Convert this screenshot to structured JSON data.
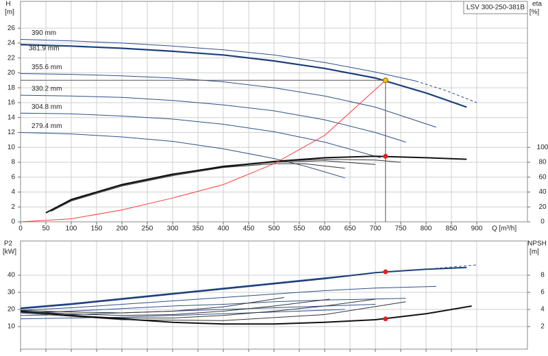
{
  "chart_data": [
    {
      "type": "line",
      "title": "LSV 300-250-381B",
      "y_label": "H",
      "y_unit": "[m]",
      "y2_label": "eta",
      "y2_unit": "[%]",
      "x_label": "Q [m³/h]",
      "xlim": [
        0,
        1000
      ],
      "xticks": [
        0,
        50,
        100,
        150,
        200,
        250,
        300,
        350,
        400,
        450,
        500,
        550,
        600,
        650,
        700,
        750,
        800,
        850,
        900
      ],
      "ylim": [
        0,
        29.6
      ],
      "yticks": [
        0,
        2,
        4,
        6,
        8,
        10,
        12,
        14,
        16,
        18,
        20,
        22,
        24,
        26
      ],
      "y2lim": [
        0,
        296
      ],
      "y2ticks": [
        0,
        20,
        40,
        60,
        80,
        100
      ],
      "grid": true,
      "xtick_labels": true,
      "series": [
        {
          "name": "390 mm",
          "color": "#2b4f8a",
          "width": 1,
          "x": [
            0,
            100,
            200,
            300,
            400,
            500,
            600,
            700,
            780
          ],
          "values": [
            24.5,
            24.3,
            24.0,
            23.6,
            23.1,
            22.4,
            21.4,
            20.1,
            18.9
          ]
        },
        {
          "color": "#2b4f8a",
          "width": 1,
          "dash": true,
          "x": [
            780,
            840,
            900
          ],
          "values": [
            18.9,
            17.6,
            16.0
          ]
        },
        {
          "name": "381.9 mm",
          "color": "#1c3f7a",
          "width": 2.2,
          "x": [
            0,
            100,
            200,
            300,
            400,
            500,
            600,
            700,
            800,
            880
          ],
          "values": [
            23.8,
            23.6,
            23.3,
            22.9,
            22.4,
            21.6,
            20.6,
            19.3,
            17.3,
            15.4
          ]
        },
        {
          "name": "355.6 mm",
          "color": "#2b4f8a",
          "width": 1,
          "x": [
            0,
            100,
            200,
            300,
            400,
            500,
            600,
            700,
            820
          ],
          "values": [
            19.9,
            19.8,
            19.6,
            19.3,
            18.8,
            18.0,
            16.9,
            15.4,
            12.7
          ]
        },
        {
          "name": "330.2 mm",
          "color": "#2b4f8a",
          "width": 1,
          "x": [
            0,
            100,
            200,
            300,
            400,
            500,
            600,
            700,
            760
          ],
          "values": [
            17.0,
            16.9,
            16.7,
            16.3,
            15.7,
            14.9,
            13.7,
            12.0,
            10.7
          ]
        },
        {
          "name": "304.8 mm",
          "color": "#2b4f8a",
          "width": 1,
          "x": [
            0,
            100,
            200,
            300,
            400,
            500,
            600,
            710
          ],
          "values": [
            14.6,
            14.5,
            14.2,
            13.8,
            13.1,
            12.1,
            10.7,
            8.6
          ]
        },
        {
          "name": "279.4 mm",
          "color": "#2b4f8a",
          "width": 1,
          "x": [
            0,
            100,
            200,
            300,
            400,
            500,
            560,
            640
          ],
          "values": [
            12.0,
            11.8,
            11.4,
            10.8,
            9.8,
            8.5,
            7.5,
            5.9
          ]
        },
        {
          "color": "#333333",
          "width": 1,
          "axis": "y2",
          "x": [
            60,
            100,
            200,
            300,
            400,
            500,
            560,
            640
          ],
          "values": [
            14,
            28,
            48,
            62,
            73,
            78,
            78,
            72
          ]
        },
        {
          "color": "#333333",
          "width": 1,
          "axis": "y2",
          "x": [
            60,
            100,
            200,
            300,
            400,
            500,
            600,
            700
          ],
          "values": [
            15,
            29,
            49,
            63,
            74,
            80,
            82,
            77
          ]
        },
        {
          "color": "#333333",
          "width": 1,
          "axis": "y2",
          "x": [
            60,
            100,
            200,
            300,
            400,
            500,
            600,
            700,
            750
          ],
          "values": [
            16,
            30,
            50,
            64,
            75,
            81,
            84,
            83,
            80
          ]
        },
        {
          "color": "#111111",
          "width": 2,
          "axis": "y2",
          "x": [
            50,
            100,
            200,
            300,
            400,
            500,
            600,
            700,
            800,
            880
          ],
          "values": [
            12,
            30,
            50,
            64,
            74,
            81,
            86,
            88,
            86,
            84
          ]
        },
        {
          "color": "#ff3b3b",
          "width": 1,
          "x": [
            0,
            100,
            200,
            300,
            400,
            500,
            600,
            720
          ],
          "values": [
            0,
            0.4,
            1.6,
            3.2,
            5.0,
            7.8,
            11.6,
            19.0
          ]
        }
      ],
      "points": [
        {
          "x": 720,
          "y": 19,
          "color": "#f5c400",
          "guides": true
        },
        {
          "x": 720,
          "y": 88,
          "axis": "y2",
          "color": "#e81e1e"
        }
      ]
    },
    {
      "type": "line",
      "y_label": "P2",
      "y_unit": "[kW]",
      "y2_label": "NPSH",
      "y2_unit": "[m]",
      "xlim": [
        0,
        1000
      ],
      "xticks": [
        0,
        50,
        100,
        150,
        200,
        250,
        300,
        350,
        400,
        450,
        500,
        550,
        600,
        650,
        700,
        750,
        800,
        850,
        900
      ],
      "ylim": [
        -3.2,
        60
      ],
      "yticks": [
        10,
        20,
        30,
        40
      ],
      "y2lim": [
        -0.64,
        12
      ],
      "y2ticks": [
        2,
        4,
        6,
        8
      ],
      "grid": true,
      "xtick_labels": false,
      "series": [
        {
          "color": "#2b4f8a",
          "width": 1,
          "x": [
            0,
            100,
            200,
            300,
            400,
            500,
            600,
            700,
            780
          ],
          "values": [
            21,
            23.5,
            26.5,
            29.5,
            32.5,
            35.5,
            38.5,
            41.5,
            43
          ]
        },
        {
          "color": "#2b4f8a",
          "width": 1,
          "dash": true,
          "x": [
            780,
            900
          ],
          "values": [
            43,
            46
          ]
        },
        {
          "color": "#1c3f7a",
          "width": 2,
          "x": [
            0,
            100,
            200,
            300,
            400,
            500,
            600,
            700,
            800,
            880
          ],
          "values": [
            20.5,
            23,
            26,
            29,
            32,
            35,
            38,
            41.5,
            43.5,
            44.5
          ]
        },
        {
          "color": "#2b4f8a",
          "width": 1,
          "x": [
            0,
            100,
            200,
            300,
            400,
            500,
            600,
            700,
            820
          ],
          "values": [
            19.5,
            21,
            23,
            25,
            27,
            29,
            31,
            32.5,
            33.5
          ]
        },
        {
          "color": "#2b4f8a",
          "width": 1,
          "x": [
            0,
            100,
            200,
            300,
            400,
            500,
            600,
            760
          ],
          "values": [
            18,
            19,
            20.5,
            22,
            23,
            24.5,
            25.5,
            26.5
          ]
        },
        {
          "color": "#2b4f8a",
          "width": 1,
          "x": [
            0,
            100,
            200,
            300,
            400,
            500,
            600,
            700
          ],
          "values": [
            16.5,
            17,
            18,
            19,
            20,
            21,
            22,
            23
          ]
        },
        {
          "color": "#2b4f8a",
          "width": 1,
          "x": [
            0,
            100,
            200,
            300,
            400,
            500,
            640
          ],
          "values": [
            14.5,
            15,
            15.5,
            16.5,
            17.5,
            18.5,
            20
          ]
        },
        {
          "color": "#333333",
          "width": 1,
          "axis": "y2",
          "x": [
            0,
            100,
            200,
            300,
            400,
            520
          ],
          "values": [
            3.9,
            3.7,
            3.6,
            3.8,
            4.3,
            5.4
          ]
        },
        {
          "color": "#333333",
          "width": 1,
          "axis": "y2",
          "x": [
            0,
            100,
            200,
            300,
            400,
            500,
            610
          ],
          "values": [
            3.8,
            3.5,
            3.3,
            3.4,
            3.8,
            4.4,
            5.2
          ]
        },
        {
          "color": "#333333",
          "width": 1,
          "axis": "y2",
          "x": [
            0,
            100,
            200,
            300,
            400,
            500,
            600,
            700
          ],
          "values": [
            3.7,
            3.3,
            3.0,
            3.0,
            3.3,
            3.8,
            4.4,
            5.2
          ]
        },
        {
          "color": "#333333",
          "width": 1,
          "axis": "y2",
          "x": [
            0,
            200,
            400,
            600,
            760
          ],
          "values": [
            3.6,
            2.8,
            2.7,
            3.4,
            4.9
          ]
        },
        {
          "color": "#111111",
          "width": 2,
          "axis": "y2",
          "x": [
            0,
            100,
            200,
            300,
            400,
            500,
            600,
            700,
            800,
            890
          ],
          "values": [
            3.8,
            3.3,
            2.9,
            2.5,
            2.3,
            2.3,
            2.5,
            2.8,
            3.5,
            4.4
          ]
        }
      ],
      "points": [
        {
          "x": 720,
          "y": 42,
          "color": "#e81e1e"
        },
        {
          "x": 720,
          "y": 2.9,
          "axis": "y2",
          "color": "#e81e1e"
        }
      ]
    }
  ]
}
